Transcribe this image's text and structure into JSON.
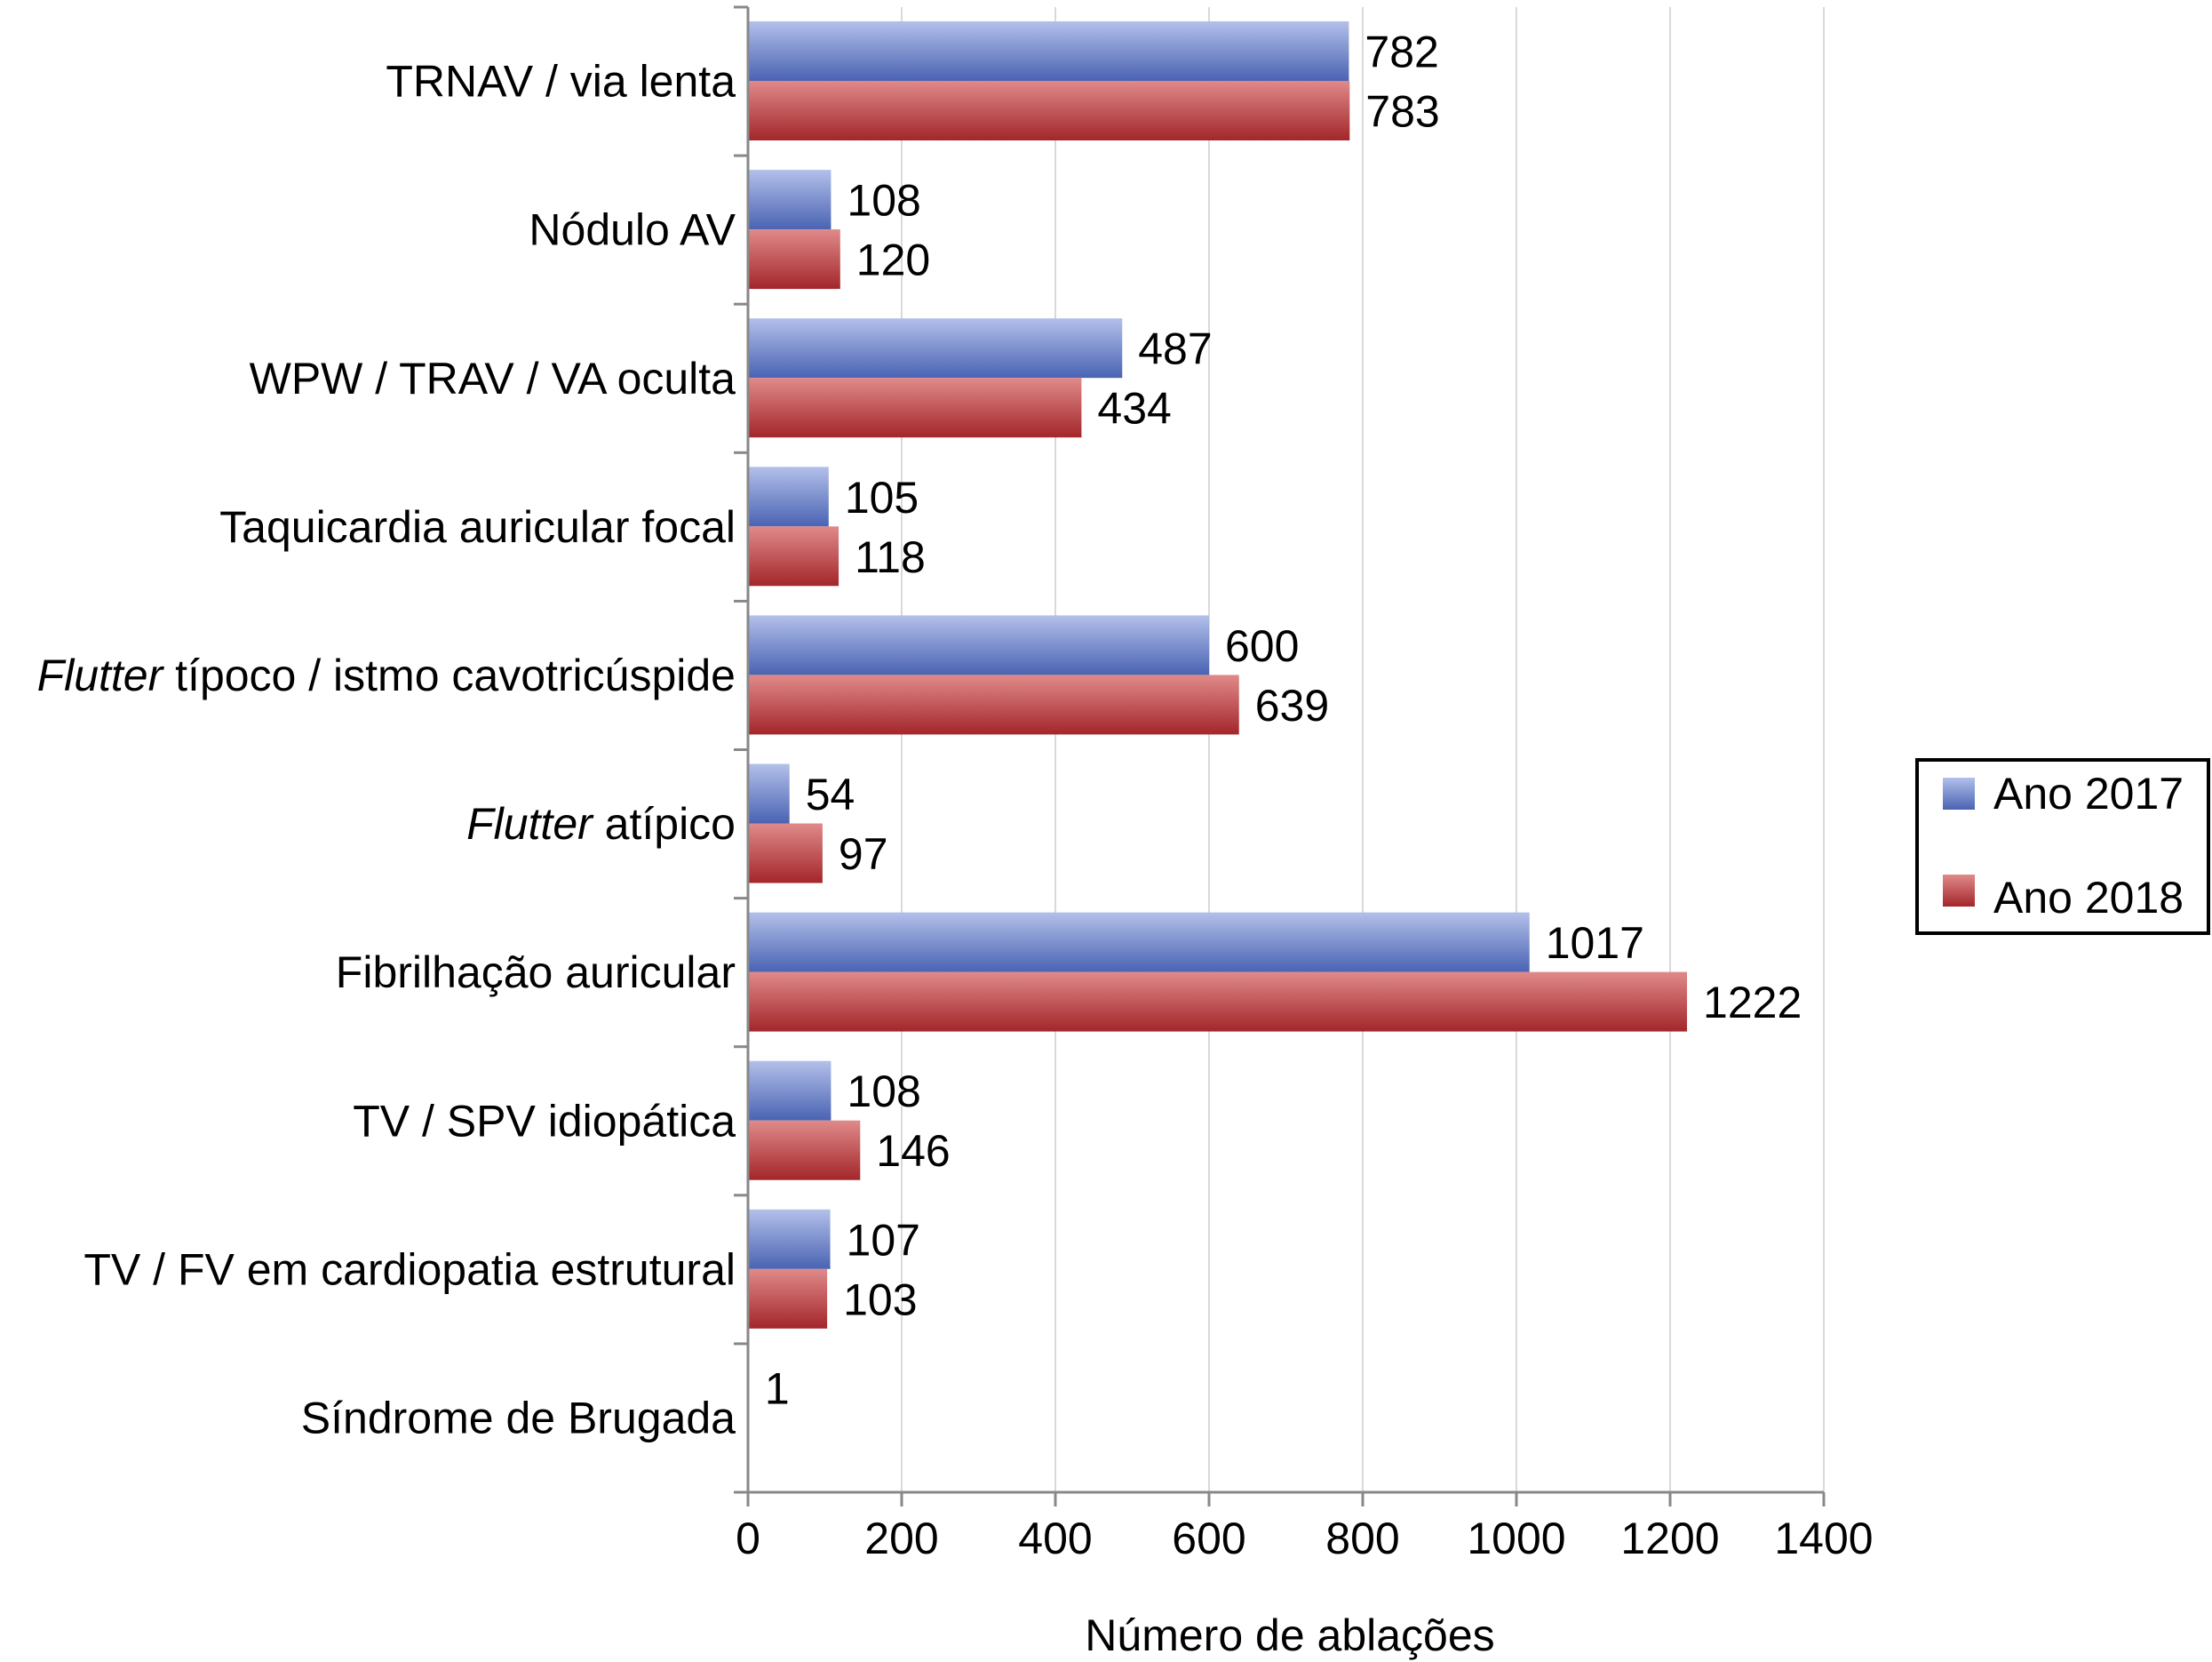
{
  "chart_data": {
    "type": "bar",
    "orientation": "horizontal",
    "categories": [
      {
        "label": "TRNAV / via lenta"
      },
      {
        "label": "Nódulo AV"
      },
      {
        "label": "WPW / TRAV / VA oculta"
      },
      {
        "label": "Taquicardia auricular focal"
      },
      {
        "italic": "Flutter",
        "label": " típoco / istmo cavotricúspide"
      },
      {
        "italic": "Flutter",
        "label": " atípico"
      },
      {
        "label": "Fibrilhação auricular"
      },
      {
        "label": "TV / SPV idiopática"
      },
      {
        "label": "TV / FV em cardiopatia estrutural"
      },
      {
        "label": "Síndrome de Brugada"
      }
    ],
    "series": [
      {
        "name": "Ano 2017",
        "color": "#4f69b8",
        "values": [
          782,
          108,
          487,
          105,
          600,
          54,
          1017,
          108,
          107,
          1
        ]
      },
      {
        "name": "Ano 2018",
        "color": "#a8292b",
        "values": [
          783,
          120,
          434,
          118,
          639,
          97,
          1222,
          146,
          103,
          null
        ]
      }
    ],
    "xlabel": "Número de ablações",
    "xlim": [
      0,
      1400
    ],
    "xticks": [
      0,
      200,
      400,
      600,
      800,
      1000,
      1200,
      1400
    ],
    "grid": true,
    "legend": "right"
  }
}
